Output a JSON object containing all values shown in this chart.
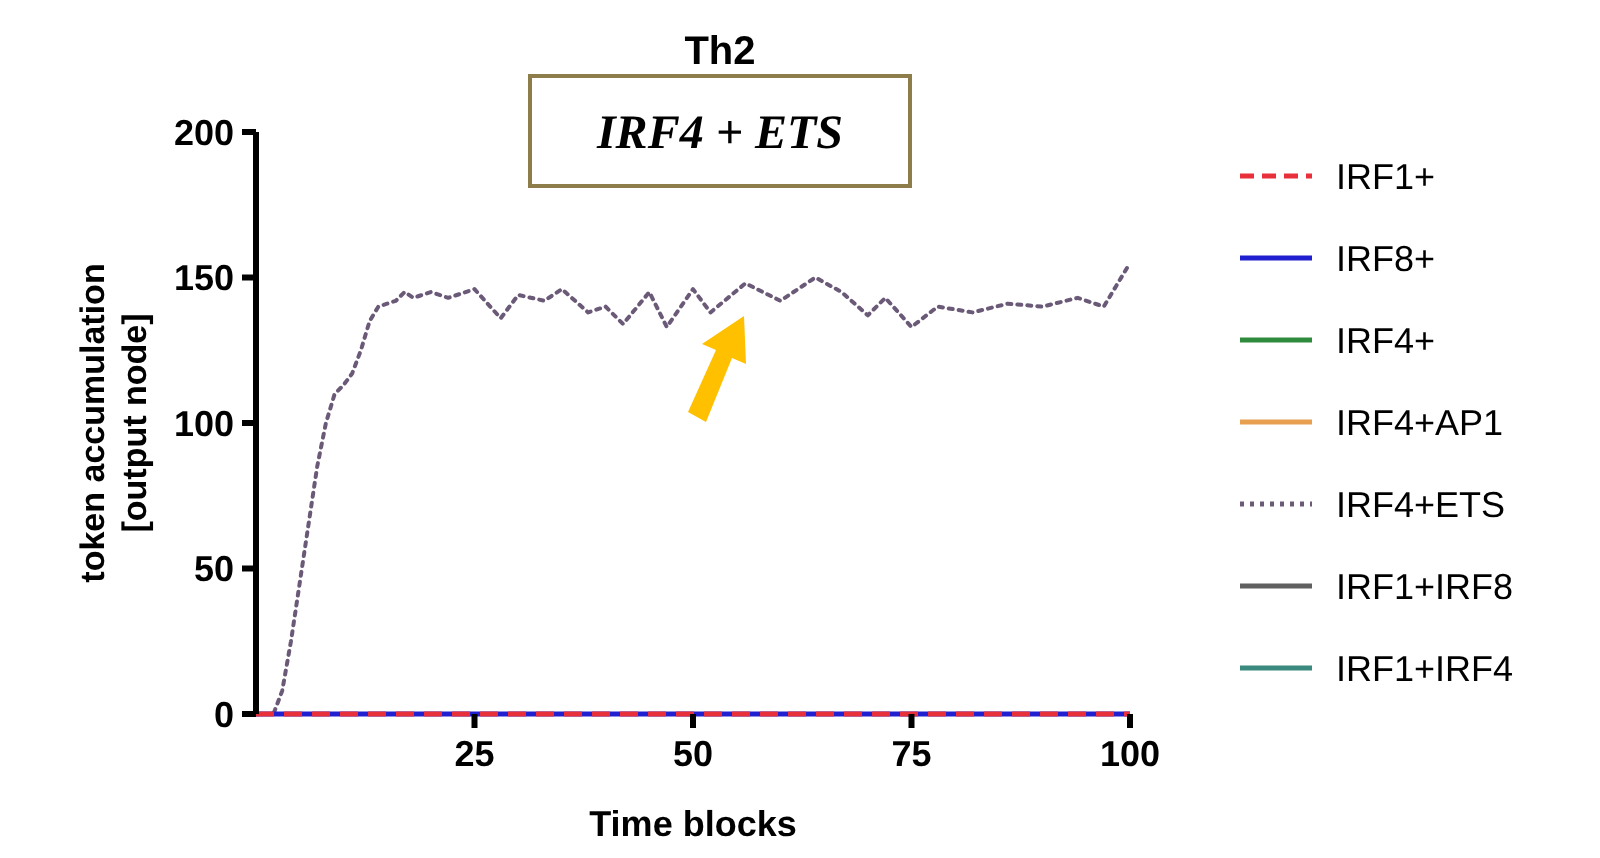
{
  "chart_data": {
    "type": "line",
    "title": "Th2",
    "subtitle": "IRF4 + ETS",
    "xlabel": "Time blocks",
    "ylabel": "token accumulation\n[output node]",
    "xlim": [
      0,
      100
    ],
    "ylim": [
      0,
      200
    ],
    "xticks": [
      25,
      50,
      75,
      100
    ],
    "yticks": [
      0,
      50,
      100,
      150,
      200
    ],
    "grid": false,
    "legend": "right",
    "marker": "none",
    "series": [
      {
        "name": "IRF1+",
        "color": "#e8303a",
        "line_style": "dashed",
        "x": [
          0,
          100
        ],
        "values": [
          0,
          0
        ]
      },
      {
        "name": "IRF8+",
        "color": "#2020d0",
        "line_style": "solid",
        "x": [
          0,
          100
        ],
        "values": [
          0,
          0
        ]
      },
      {
        "name": "IRF4+",
        "color": "#2e8b3e",
        "line_style": "solid"
      },
      {
        "name": "IRF4+AP1",
        "color": "#e8a050",
        "line_style": "solid"
      },
      {
        "name": "IRF4+ETS",
        "color": "#6a5a78",
        "line_style": "dotted",
        "x": [
          1,
          2,
          3,
          4,
          5,
          6,
          7,
          8,
          9,
          10,
          11,
          12,
          13,
          14,
          15,
          16,
          17,
          18,
          20,
          22,
          25,
          28,
          30,
          33,
          35,
          38,
          40,
          42,
          45,
          47,
          50,
          52,
          56,
          60,
          64,
          67,
          70,
          72,
          75,
          78,
          82,
          86,
          90,
          94,
          97,
          100
        ],
        "values": [
          0,
          0,
          8,
          25,
          45,
          65,
          85,
          100,
          110,
          113,
          117,
          125,
          135,
          140,
          141,
          142,
          145,
          143,
          145,
          143,
          146,
          136,
          144,
          142,
          146,
          138,
          140,
          134,
          145,
          133,
          146,
          138,
          148,
          142,
          150,
          145,
          137,
          143,
          133,
          140,
          138,
          141,
          140,
          143,
          140,
          155
        ]
      },
      {
        "name": "IRF1+IRF8",
        "color": "#606060",
        "line_style": "solid"
      },
      {
        "name": "IRF1+IRF4",
        "color": "#3a8a80",
        "line_style": "solid"
      }
    ]
  }
}
